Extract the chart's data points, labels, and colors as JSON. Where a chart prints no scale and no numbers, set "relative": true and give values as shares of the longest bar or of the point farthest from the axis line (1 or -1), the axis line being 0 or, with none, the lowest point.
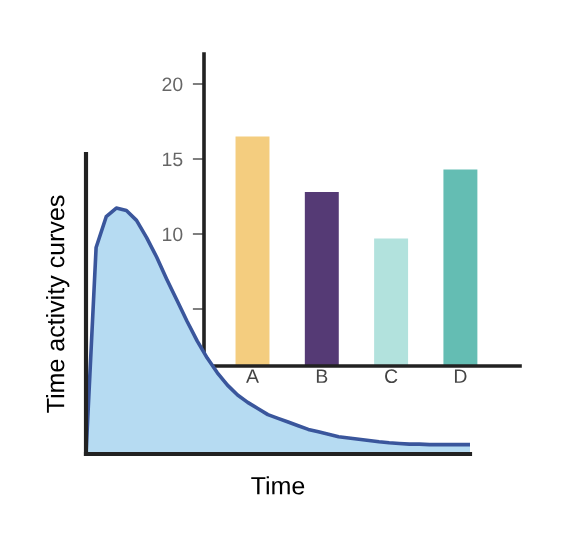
{
  "chart_data": [
    {
      "type": "area",
      "relative": true,
      "xlabel": "Time",
      "ylabel": "Time activity curves",
      "tick_labels": false,
      "grid": false,
      "categories": [
        null,
        null,
        null,
        null,
        null,
        null,
        null,
        null,
        null,
        null,
        null,
        null,
        null,
        null,
        null,
        null,
        null,
        null,
        null,
        null,
        null,
        null,
        null,
        null,
        null,
        null,
        null,
        null,
        null,
        null,
        null,
        null,
        null,
        null,
        null,
        null,
        null,
        null,
        null
      ],
      "series": [
        {
          "color": "#b6dbf2",
          "values": [
            0,
            0.84,
            0.965,
            1,
            0.99,
            0.95,
            0.88,
            0.8,
            0.71,
            0.625,
            0.54,
            0.46,
            0.39,
            0.33,
            0.28,
            0.24,
            0.21,
            0.185,
            0.16,
            0.145,
            0.13,
            0.115,
            0.1,
            0.09,
            0.08,
            0.07,
            0.065,
            0.06,
            0.055,
            0.05,
            0.046,
            0.043,
            0.04,
            0.04,
            0.038,
            0.038,
            0.038,
            0.038,
            0.038
          ]
        }
      ]
    },
    {
      "type": "bar",
      "categories": [
        "A",
        "B",
        "C",
        "D"
      ],
      "values": [
        16.5,
        12.8,
        9.7,
        14.3
      ],
      "colors": [
        "#f4cd7f",
        "#553a75",
        "#b2e2dd",
        "#64bdb3"
      ],
      "ylim": [
        1.2,
        22
      ],
      "yticks": [
        {
          "value": 5,
          "label": null
        },
        10,
        15,
        20
      ],
      "grid": false
    }
  ]
}
